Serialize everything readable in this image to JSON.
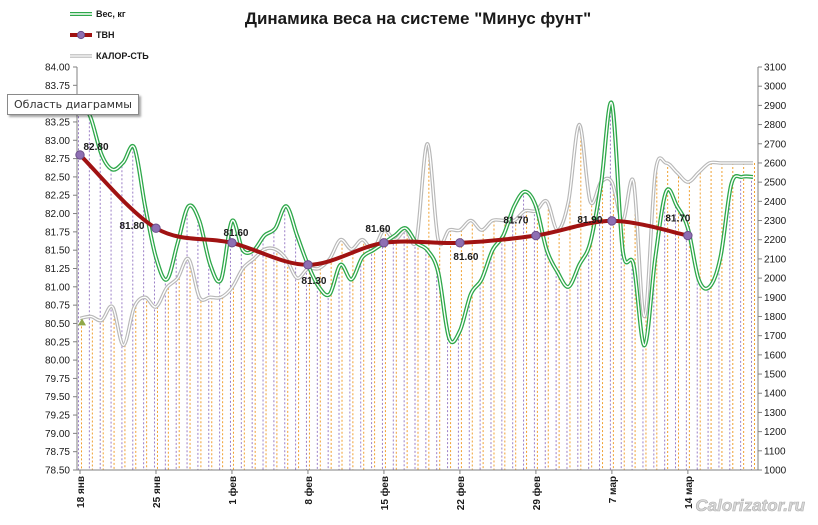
{
  "chart_data": {
    "type": "line",
    "title": "Динамика веса на системе \"Минус фунт\"",
    "legend_position": "top-left",
    "colors": {
      "weight": "#2ea84a",
      "weight_inner": "#ffffff",
      "tvn": "#a01212",
      "marker_fill": "#8e6fb3",
      "marker_stroke": "#6a4e8a",
      "calories": "#b8b8b8",
      "drop_weight": "#9b7fc7",
      "drop_cal": "#f0a030",
      "axis": "#808080",
      "first_marker": "#8fa848"
    },
    "y_left": {
      "min": 78.5,
      "max": 84.0,
      "step": 0.25,
      "tick_labels": [
        "84.00",
        "83.75",
        "83.50",
        "83.25",
        "83.00",
        "82.75",
        "82.50",
        "82.25",
        "82.00",
        "81.75",
        "81.50",
        "81.25",
        "81.00",
        "80.75",
        "80.50",
        "80.25",
        "80.00",
        "79.75",
        "79.50",
        "79.25",
        "79.00",
        "78.75",
        "78.50"
      ]
    },
    "y_right": {
      "min": 1000,
      "max": 3100,
      "step": 100,
      "tick_labels": [
        "3100",
        "3000",
        "2900",
        "2800",
        "2700",
        "2600",
        "2500",
        "2400",
        "2300",
        "2200",
        "2100",
        "2000",
        "1900",
        "1800",
        "1700",
        "1600",
        "1500",
        "1400",
        "1300",
        "1200",
        "1100",
        "1000"
      ]
    },
    "x_tick_labels": [
      "18 янв",
      "25 янв",
      "1 фев",
      "8 фев",
      "15 фев",
      "22 фев",
      "29 фев",
      "7 мар",
      "14 мар"
    ],
    "x_tick_days": [
      0,
      7,
      14,
      21,
      28,
      35,
      42,
      49,
      56
    ],
    "x_range": [
      0,
      62
    ],
    "series": [
      {
        "name": "Вес, кг",
        "key": "weight",
        "x": [
          0,
          1,
          2,
          3,
          4,
          5,
          6,
          7,
          8,
          9,
          10,
          11,
          12,
          13,
          14,
          15,
          16,
          17,
          18,
          19,
          20,
          21,
          22,
          23,
          24,
          25,
          26,
          27,
          28,
          29,
          30,
          31,
          32,
          33,
          34,
          35,
          36,
          37,
          38,
          39,
          40,
          41,
          42,
          43,
          44,
          45,
          46,
          47,
          48,
          49,
          50,
          51,
          52,
          53,
          54,
          55,
          56,
          57,
          58,
          59,
          60,
          61,
          62
        ],
        "values": [
          83.6,
          83.3,
          82.8,
          82.6,
          82.7,
          82.9,
          82.1,
          81.4,
          81.1,
          81.6,
          82.1,
          81.9,
          81.3,
          81.1,
          81.9,
          81.5,
          81.5,
          81.7,
          81.8,
          82.1,
          81.7,
          81.3,
          81.0,
          80.9,
          81.3,
          81.1,
          81.4,
          81.5,
          81.6,
          81.7,
          81.8,
          81.6,
          81.5,
          81.2,
          80.3,
          80.4,
          80.9,
          81.1,
          81.5,
          81.7,
          82.1,
          82.3,
          82.1,
          81.5,
          81.2,
          81.0,
          81.3,
          81.6,
          82.4,
          83.5,
          81.5,
          81.3,
          80.2,
          81.4,
          82.3,
          82.1,
          81.8,
          81.1,
          81.0,
          81.4,
          82.4,
          82.5,
          82.5
        ]
      },
      {
        "name": "ТВН",
        "key": "tvn",
        "x": [
          0,
          7,
          14,
          21,
          28,
          35,
          42,
          49,
          56
        ],
        "values": [
          82.8,
          81.8,
          81.6,
          81.3,
          81.6,
          81.6,
          81.7,
          81.9,
          81.7
        ],
        "labels": [
          "82.80",
          "81.80",
          "81.60",
          "81.30",
          "81.60",
          "81.60",
          "81.70",
          "81.90",
          "81.70"
        ]
      },
      {
        "name": "КАЛОР-СТЬ",
        "key": "calories",
        "x": [
          0,
          1,
          2,
          3,
          4,
          5,
          6,
          7,
          8,
          9,
          10,
          11,
          12,
          13,
          14,
          15,
          16,
          17,
          18,
          19,
          20,
          21,
          22,
          23,
          24,
          25,
          26,
          27,
          28,
          29,
          30,
          31,
          32,
          33,
          34,
          35,
          36,
          37,
          38,
          39,
          40,
          41,
          42,
          43,
          44,
          45,
          46,
          47,
          48,
          49,
          50,
          51,
          52,
          53,
          54,
          55,
          56,
          57,
          58,
          59,
          60,
          61,
          62
        ],
        "values": [
          1790,
          1800,
          1780,
          1850,
          1650,
          1850,
          1900,
          1850,
          1950,
          2000,
          2100,
          1900,
          1900,
          1900,
          1950,
          2050,
          2100,
          2150,
          2150,
          2100,
          2000,
          2050,
          2050,
          2100,
          2200,
          2150,
          2200,
          2150,
          2250,
          2200,
          2250,
          2200,
          2700,
          2200,
          2250,
          2250,
          2300,
          2250,
          2300,
          2300,
          2300,
          2350,
          2350,
          2400,
          2250,
          2400,
          2800,
          2400,
          2500,
          2500,
          2300,
          2500,
          1800,
          2550,
          2600,
          2550,
          2500,
          2550,
          2600,
          2600,
          2600,
          2600,
          2600
        ]
      }
    ]
  },
  "tooltip": "Область диаграммы",
  "watermark": "Calorizator.ru"
}
